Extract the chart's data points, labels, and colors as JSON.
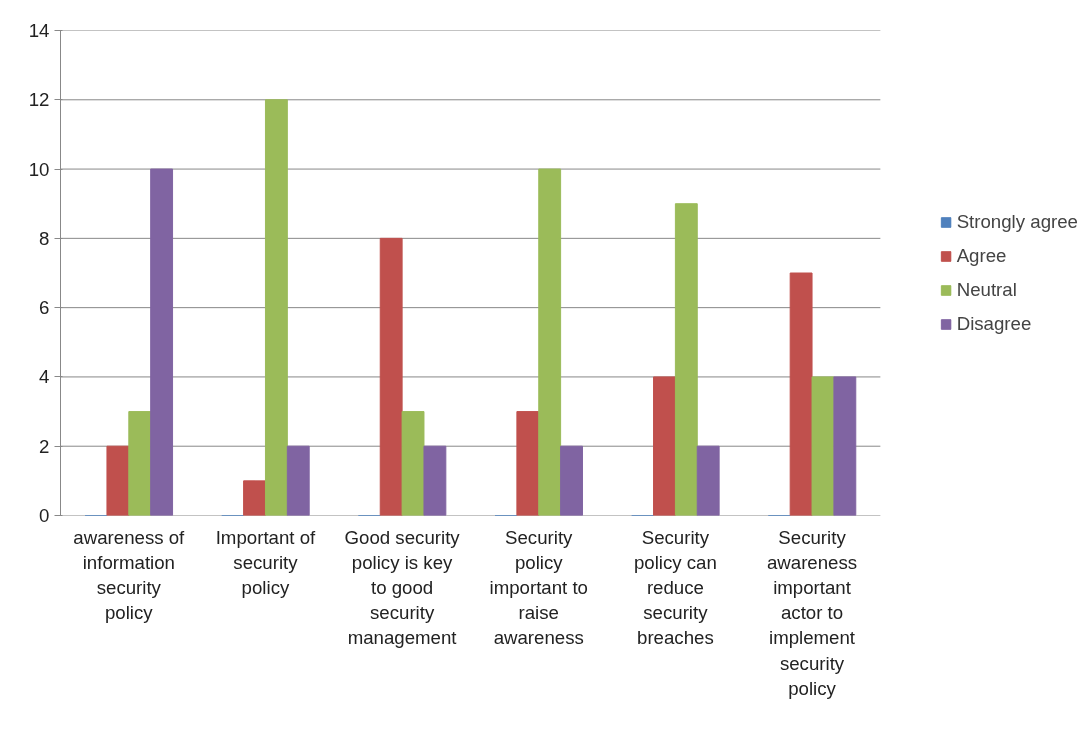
{
  "chart_data": {
    "type": "bar",
    "categories": [
      "awareness of information security policy",
      "Important of security policy",
      "Good security policy is key to good security management",
      "Security policy important to raise awareness",
      "Security policy can reduce security breaches",
      "Security awareness important actor to implement security policy"
    ],
    "series": [
      {
        "name": "Strongly agree",
        "color": "#4f81bd",
        "values": [
          0,
          0,
          0,
          0,
          0,
          0
        ]
      },
      {
        "name": "Agree",
        "color": "#c0504d",
        "values": [
          2,
          1,
          8,
          3,
          4,
          7
        ]
      },
      {
        "name": "Neutral",
        "color": "#9bbb59",
        "values": [
          3,
          12,
          3,
          10,
          9,
          4
        ]
      },
      {
        "name": "Disagree",
        "color": "#8064a2",
        "values": [
          10,
          2,
          2,
          2,
          2,
          4
        ]
      }
    ],
    "ylim": [
      0,
      14
    ],
    "yticks": [
      0,
      2,
      4,
      6,
      8,
      10,
      12,
      14
    ],
    "grid": "y",
    "legend": "right"
  }
}
